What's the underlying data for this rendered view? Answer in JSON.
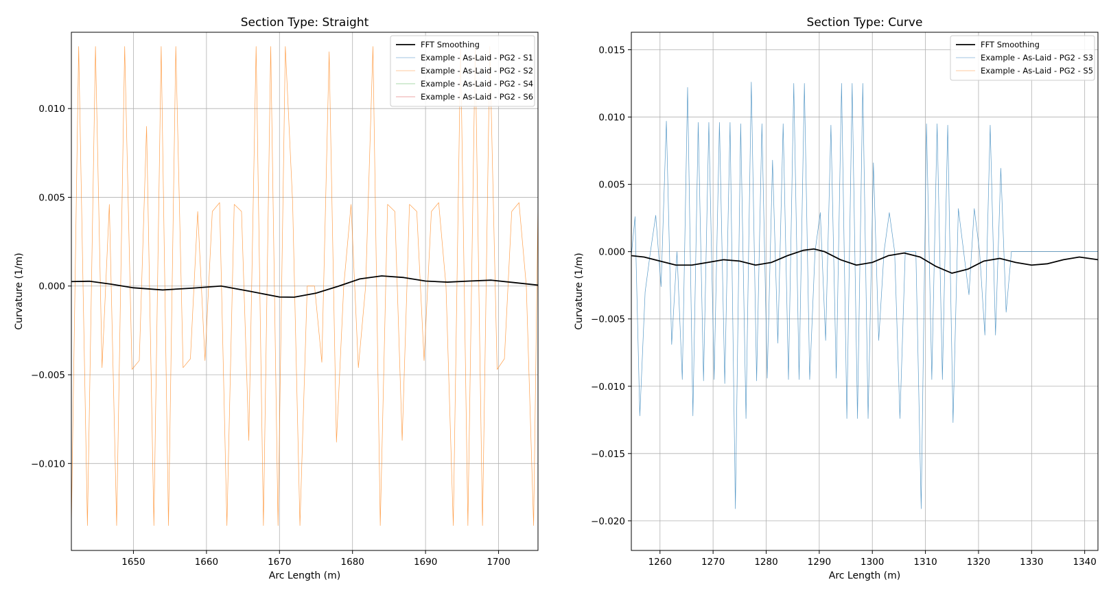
{
  "colors": {
    "blue": "#1f77b4",
    "orange": "#ff7f0e",
    "fft": "#000000",
    "grid": "#b0b0b0"
  },
  "chart_data": [
    {
      "type": "line",
      "title": "Section Type: Straight",
      "xlabel": "Arc Length (m)",
      "ylabel": "Curvature (1/m)",
      "xlim": [
        1641.5,
        1705.4
      ],
      "ylim": [
        -0.0149,
        0.0143
      ],
      "xticks": [
        1650,
        1660,
        1670,
        1680,
        1690,
        1700
      ],
      "xtick_labels": [
        "1650",
        "1660",
        "1670",
        "1680",
        "1690",
        "1700"
      ],
      "yticks": [
        -0.01,
        -0.005,
        0.0,
        0.005,
        0.01
      ],
      "ytick_labels": [
        "−0.010",
        "−0.005",
        "0.000",
        "0.005",
        "0.010"
      ],
      "grid": true,
      "legend_position": "top-right",
      "legend": [
        "FFT Smoothing",
        "Example - As-Laid - PG2 - S1",
        "Example - As-Laid - PG2 - S2",
        "Example - As-Laid - PG2 - S4",
        "Example - As-Laid - PG2 - S6"
      ],
      "series": [
        {
          "name": "FFT Smoothing",
          "color": "#000000",
          "width": 1.8,
          "x": [
            1641.5,
            1644,
            1647,
            1650,
            1654,
            1658,
            1662,
            1666,
            1670,
            1672,
            1675,
            1678,
            1681,
            1684,
            1687,
            1690,
            1693,
            1696,
            1699,
            1702,
            1705.4
          ],
          "y": [
            0.00025,
            0.00027,
            0.0001,
            -0.0001,
            -0.00022,
            -0.00012,
            0.0,
            -0.0003,
            -0.00062,
            -0.00063,
            -0.0004,
            -2e-05,
            0.0004,
            0.00057,
            0.00048,
            0.00028,
            0.00022,
            0.00028,
            0.00033,
            0.0002,
            5e-05
          ]
        },
        {
          "name": "Example - As-Laid - PG2 - S2",
          "color": "#ff7f0e",
          "width": 0.7,
          "opacity": 0.75,
          "x": [
            1641.5,
            1642.5,
            1643.7,
            1644.8,
            1645.7,
            1646.7,
            1647.7,
            1648.8,
            1649.8,
            1650.8,
            1651.8,
            1652.8,
            1653.8,
            1654.8,
            1655.8,
            1656.8,
            1657.8,
            1658.8,
            1659.8,
            1660.8,
            1661.8,
            1662.8,
            1663.8,
            1664.8,
            1665.8,
            1666.8,
            1667.8,
            1668.8,
            1669.8,
            1670.8,
            1671.8,
            1672.8,
            1673.8,
            1674.8,
            1675.8,
            1676.8,
            1677.8,
            1678.8,
            1679.8,
            1680.8,
            1681.8,
            1682.8,
            1683.8,
            1684.8,
            1685.8,
            1686.8,
            1687.8,
            1688.8,
            1689.8,
            1690.8,
            1691.8,
            1692.8,
            1693.8,
            1694.8,
            1695.8,
            1696.8,
            1697.8,
            1698.8,
            1699.8,
            1700.8,
            1701.8,
            1702.8,
            1703.8,
            1704.8,
            1705.4
          ],
          "y": [
            -0.0135,
            0.0135,
            -0.0135,
            0.0135,
            -0.0046,
            0.0046,
            -0.0135,
            0.0135,
            -0.0047,
            -0.0042,
            0.009,
            -0.0135,
            0.0135,
            -0.0135,
            0.0135,
            -0.0046,
            -0.0041,
            0.0042,
            -0.0042,
            0.0042,
            0.0047,
            -0.0135,
            0.0046,
            0.0042,
            -0.0087,
            0.0135,
            -0.0135,
            0.0135,
            -0.0135,
            0.0135,
            0.0047,
            -0.0135,
            0.0,
            0.0,
            -0.0043,
            0.0132,
            -0.0088,
            0.0,
            0.0046,
            -0.0046,
            0.0,
            0.0135,
            -0.0135,
            0.0046,
            0.0042,
            -0.0087,
            0.0046,
            0.0042,
            -0.0042,
            0.0042,
            0.0047,
            0.0,
            -0.0135,
            0.0135,
            -0.0135,
            0.0135,
            -0.0135,
            0.0135,
            -0.0047,
            -0.0041,
            0.0042,
            0.0047,
            0.0,
            -0.0135,
            0.0046
          ]
        }
      ]
    },
    {
      "type": "line",
      "title": "Section Type: Curve",
      "xlabel": "Arc Length (m)",
      "ylabel": "Curvature (1/m)",
      "xlim": [
        1254.6,
        1342.5
      ],
      "ylim": [
        -0.0222,
        0.0163
      ],
      "xticks": [
        1260,
        1270,
        1280,
        1290,
        1300,
        1310,
        1320,
        1330,
        1340
      ],
      "xtick_labels": [
        "1260",
        "1270",
        "1280",
        "1290",
        "1300",
        "1310",
        "1320",
        "1330",
        "1340"
      ],
      "yticks": [
        -0.02,
        -0.015,
        -0.01,
        -0.005,
        0.0,
        0.005,
        0.01,
        0.015
      ],
      "ytick_labels": [
        "−0.020",
        "−0.015",
        "−0.010",
        "−0.005",
        "0.000",
        "0.005",
        "0.010",
        "0.015"
      ],
      "grid": true,
      "legend_position": "top-right",
      "legend": [
        "FFT Smoothing",
        "Example - As-Laid - PG2 - S3",
        "Example - As-Laid - PG2 - S5"
      ],
      "series": [
        {
          "name": "FFT Smoothing",
          "color": "#000000",
          "width": 1.8,
          "x": [
            1254.6,
            1257,
            1260,
            1263,
            1266,
            1269,
            1272,
            1275,
            1278,
            1281,
            1284,
            1287,
            1289,
            1291,
            1294,
            1297,
            1300,
            1303,
            1306,
            1309,
            1312,
            1315,
            1318,
            1321,
            1324,
            1327,
            1330,
            1333,
            1336,
            1339,
            1342.5
          ],
          "y": [
            -0.0003,
            -0.0004,
            -0.0007,
            -0.001,
            -0.001,
            -0.0008,
            -0.0006,
            -0.0007,
            -0.001,
            -0.0008,
            -0.0003,
            0.0001,
            0.0002,
            0.0,
            -0.0006,
            -0.001,
            -0.0008,
            -0.0003,
            -0.0001,
            -0.0004,
            -0.0011,
            -0.0016,
            -0.0013,
            -0.0007,
            -0.0005,
            -0.0008,
            -0.001,
            -0.0009,
            -0.0006,
            -0.0004,
            -0.0006
          ]
        },
        {
          "name": "Example - As-Laid - PG2 - S3",
          "color": "#1f77b4",
          "width": 0.7,
          "opacity": 0.75,
          "x": [
            1254.6,
            1255.3,
            1256.2,
            1257.2,
            1258.2,
            1259.2,
            1260.2,
            1261.2,
            1262.2,
            1263.2,
            1264.2,
            1265.2,
            1266.2,
            1267.2,
            1268.2,
            1269.2,
            1270.2,
            1271.2,
            1272.2,
            1273.2,
            1274.2,
            1275.2,
            1276.2,
            1277.2,
            1278.2,
            1279.2,
            1280.2,
            1281.2,
            1282.2,
            1283.2,
            1284.2,
            1285.2,
            1286.2,
            1287.2,
            1288.2,
            1289.2,
            1290.2,
            1291.2,
            1292.2,
            1293.2,
            1294.2,
            1295.2,
            1296.2,
            1297.2,
            1298.2,
            1299.2,
            1300.2,
            1301.2,
            1302.2,
            1303.2,
            1304.2,
            1305.2,
            1306.2,
            1307.2,
            1308.2,
            1309.2,
            1310.2,
            1311.2,
            1312.2,
            1313.2,
            1314.2,
            1315.2,
            1316.2,
            1317.2,
            1318.2,
            1319.2,
            1320.2,
            1321.2,
            1322.2,
            1323.2,
            1324.2,
            1325.2,
            1326.2,
            1327.2,
            1328.2,
            1329.2,
            1330.2,
            1331.2,
            1332.2,
            1333.2,
            1334.2,
            1335.2,
            1336.2,
            1337.2,
            1338.2,
            1339.2,
            1340.2,
            1341.2,
            1342.2,
            1342.5
          ],
          "y": [
            -0.0003,
            0.0026,
            -0.0122,
            -0.003,
            0.0,
            0.0027,
            -0.0026,
            0.0097,
            -0.0069,
            0.0,
            -0.0095,
            0.0122,
            -0.0122,
            0.0096,
            -0.0096,
            0.0096,
            -0.0095,
            0.0096,
            -0.0098,
            0.0096,
            -0.0191,
            0.0095,
            -0.0124,
            0.0126,
            -0.0096,
            0.0095,
            -0.0094,
            0.0068,
            -0.0068,
            0.0095,
            -0.0095,
            0.0125,
            -0.0095,
            0.0125,
            -0.0095,
            0.0,
            0.0029,
            -0.0066,
            0.0094,
            -0.0094,
            0.0125,
            -0.0124,
            0.0125,
            -0.0124,
            0.0125,
            -0.0124,
            0.0066,
            -0.0066,
            0.0,
            0.0029,
            0.0,
            -0.0124,
            0.0,
            0.0,
            0.0,
            -0.0191,
            0.0095,
            -0.0095,
            0.0095,
            -0.0095,
            0.0094,
            -0.0127,
            0.0032,
            0.0,
            -0.0032,
            0.0032,
            0.0,
            -0.0062,
            0.0094,
            -0.0062,
            0.0062,
            -0.0045,
            0.0,
            0.0,
            0.0,
            0.0,
            0.0,
            0.0,
            0.0,
            0.0,
            0.0,
            0.0,
            0.0,
            0.0,
            0.0,
            0.0,
            0.0,
            0.0,
            0.0,
            0.0
          ]
        }
      ]
    }
  ]
}
